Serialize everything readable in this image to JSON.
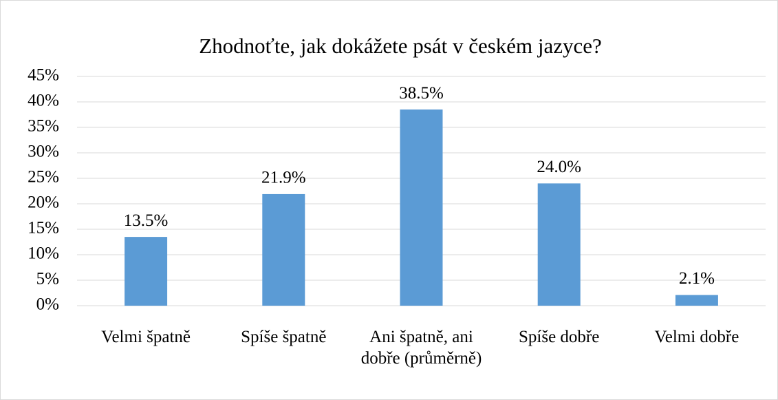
{
  "chart_data": {
    "type": "bar",
    "title": "Zhodnoťte, jak dokážete psát v českém jazyce?",
    "categories": [
      "Velmi špatně",
      "Spíše špatně",
      "Ani špatně, ani dobře (průměrně)",
      "Spíše dobře",
      "Velmi dobře"
    ],
    "values": [
      13.5,
      21.9,
      38.5,
      24.0,
      2.1
    ],
    "value_labels": [
      "13.5%",
      "21.9%",
      "38.5%",
      "24.0%",
      "2.1%"
    ],
    "color": "#5b9bd5",
    "ylim": [
      0,
      45
    ],
    "yticks": [
      {
        "value": 0,
        "label": "0%"
      },
      {
        "value": 5,
        "label": "5%"
      },
      {
        "value": 10,
        "label": "10%"
      },
      {
        "value": 15,
        "label": "15%"
      },
      {
        "value": 20,
        "label": "20%"
      },
      {
        "value": 25,
        "label": "25%"
      },
      {
        "value": 30,
        "label": "30%"
      },
      {
        "value": 35,
        "label": "35%"
      },
      {
        "value": 40,
        "label": "40%"
      },
      {
        "value": 45,
        "label": "45%"
      }
    ],
    "grid": true
  }
}
